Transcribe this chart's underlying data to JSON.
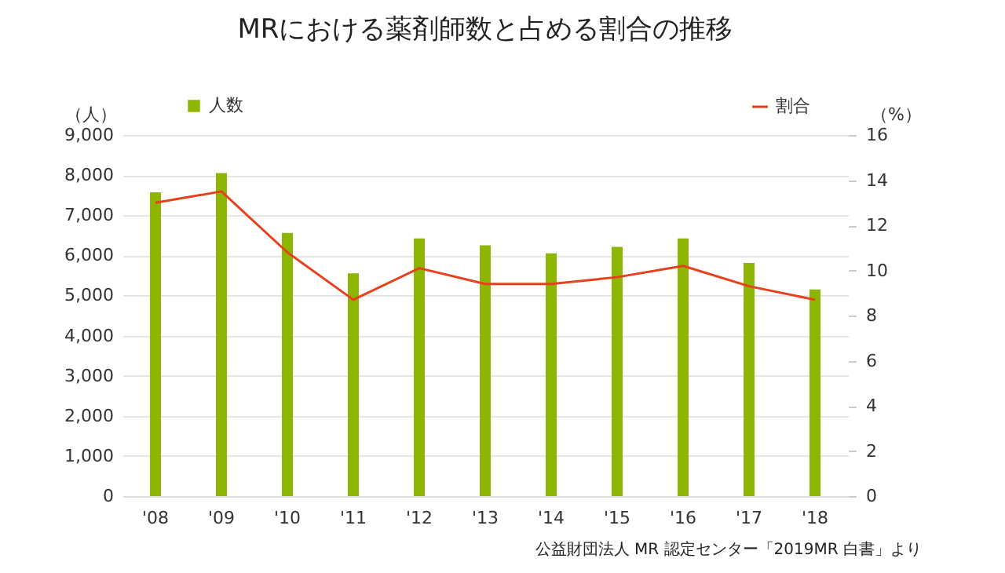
{
  "chart_data": {
    "type": "bar",
    "title": "MRにおける薬剤師数と占める割合の推移",
    "ylabel": "（人）",
    "y2label": "（%）",
    "categories": [
      "'08",
      "'09",
      "'10",
      "'11",
      "'12",
      "'13",
      "'14",
      "'15",
      "'16",
      "'17",
      "'18"
    ],
    "series": [
      {
        "name": "人数",
        "color": "#8db600",
        "values": [
          7570,
          8050,
          6560,
          5550,
          6420,
          6250,
          6050,
          6210,
          6420,
          5810,
          5150
        ]
      },
      {
        "name": "割合",
        "type": "line",
        "axis": "y2",
        "color": "#e8401c",
        "values": [
          13.0,
          13.5,
          10.8,
          8.7,
          10.1,
          9.4,
          9.4,
          9.7,
          10.2,
          9.3,
          8.7
        ]
      }
    ],
    "ylim": [
      0,
      9000
    ],
    "yticks": [
      0,
      {
        "value": 1000,
        "label": "1,000"
      },
      {
        "value": 2000,
        "label": "2,000"
      },
      {
        "value": 3000,
        "label": "3,000"
      },
      {
        "value": 4000,
        "label": "4,000"
      },
      {
        "value": 5000,
        "label": "5,000"
      },
      {
        "value": 6000,
        "label": "6,000"
      },
      {
        "value": 7000,
        "label": "7,000"
      },
      {
        "value": 8000,
        "label": "8,000"
      },
      {
        "value": 9000,
        "label": "9,000"
      }
    ],
    "y2lim": [
      0,
      16
    ],
    "y2ticks": [
      0,
      2,
      4,
      6,
      8,
      10,
      12,
      14,
      16
    ],
    "grid": "y",
    "legend": "top",
    "annotations": [
      "公益財団法人 MR 認定センター「2019MR 白書」より"
    ]
  }
}
